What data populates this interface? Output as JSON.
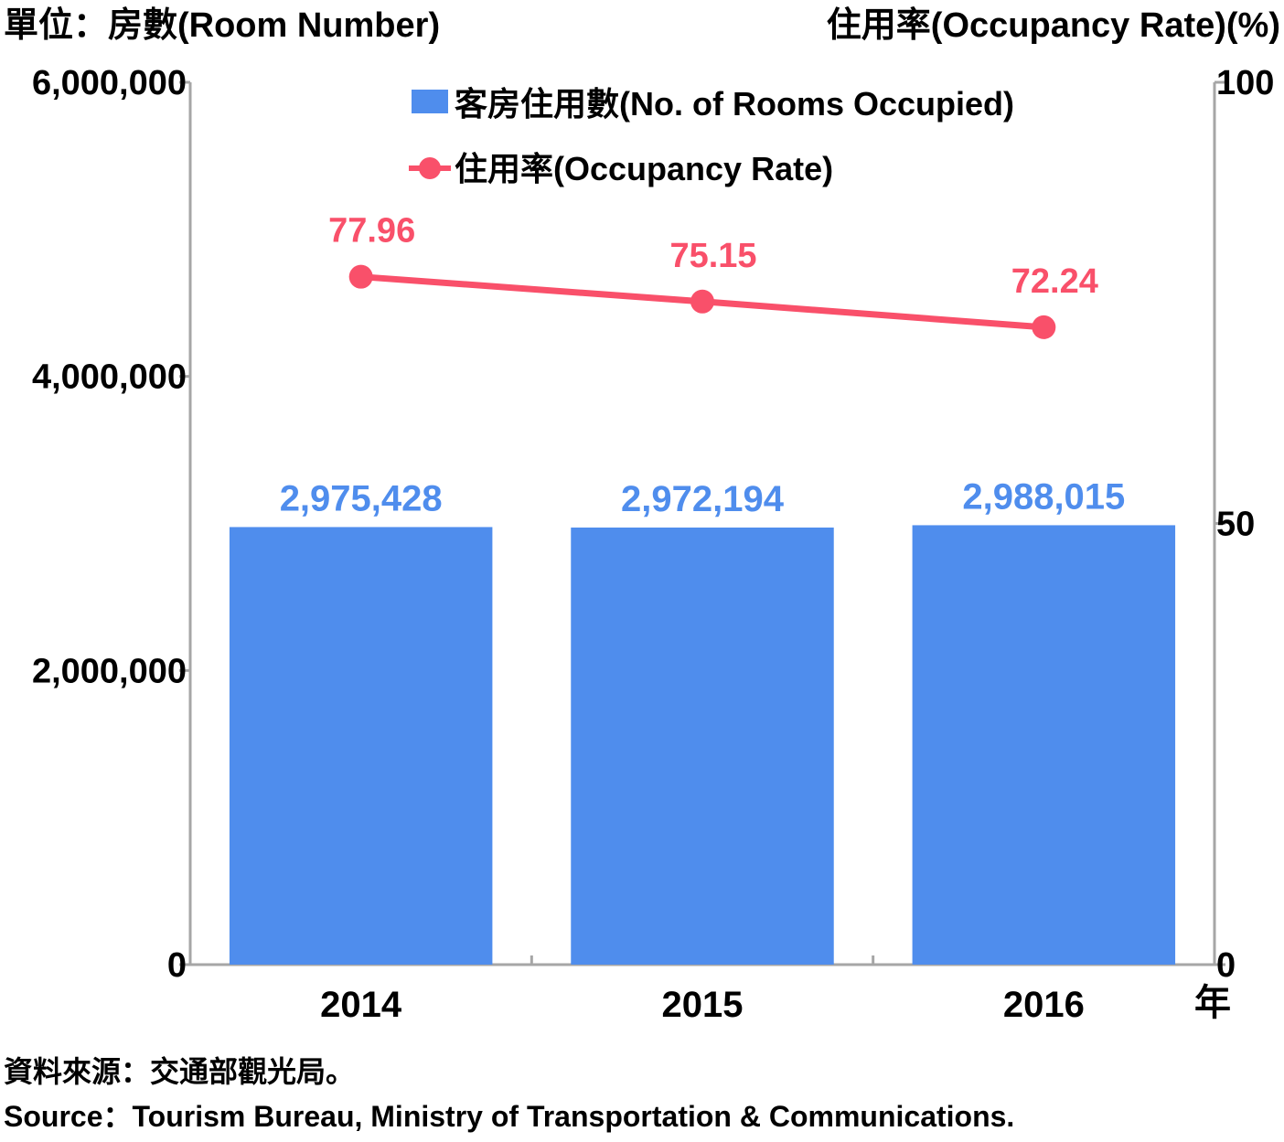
{
  "chart_data": {
    "type": "bar",
    "categories": [
      "2014",
      "2015",
      "2016"
    ],
    "x_unit_label": "年",
    "left_axis": {
      "label": "單位：房數(Room Number)",
      "ylim": [
        0,
        6000000
      ],
      "ticks": [
        0,
        2000000,
        4000000,
        6000000
      ],
      "tick_labels": [
        "0",
        "2,000,000",
        "4,000,000",
        "6,000,000"
      ]
    },
    "right_axis": {
      "label": "住用率(Occupancy Rate)(%)",
      "ylim": [
        0,
        100
      ],
      "ticks": [
        0,
        50,
        100
      ],
      "tick_labels": [
        "0",
        "50",
        "100"
      ]
    },
    "series": [
      {
        "name": "客房住用數(No. of Rooms Occupied)",
        "type": "bar",
        "axis": "left",
        "values": [
          2975428,
          2972194,
          2988015
        ],
        "labels": [
          "2,975,428",
          "2,972,194",
          "2,988,015"
        ],
        "color": "#4f8ded"
      },
      {
        "name": "住用率(Occupancy Rate)",
        "type": "line",
        "axis": "right",
        "values": [
          77.96,
          75.15,
          72.24
        ],
        "labels": [
          "77.96",
          "75.15",
          "72.24"
        ],
        "color": "#f9506a"
      }
    ],
    "legend_position": "top-center",
    "grid": false,
    "axis_color": "#a6a6a6"
  },
  "source": {
    "zh": "資料來源：交通部觀光局。",
    "en": "Source：Tourism Bureau, Ministry of Transportation & Communications."
  }
}
